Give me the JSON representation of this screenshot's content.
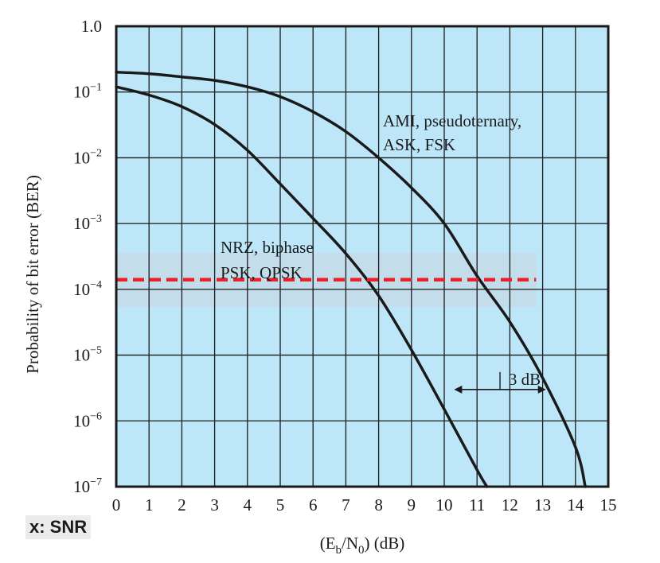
{
  "badge": {
    "text": "x: SNR"
  },
  "chart_data": {
    "type": "line",
    "xlabel": "(E_b/N_0) (dB)",
    "ylabel": "Probability of bit error (BER)",
    "xlim": [
      0,
      15
    ],
    "ylim": [
      1e-07,
      1.0
    ],
    "yscale": "log",
    "grid": true,
    "x_ticks": [
      0,
      1,
      2,
      3,
      4,
      5,
      6,
      7,
      8,
      9,
      10,
      11,
      12,
      13,
      14,
      15
    ],
    "y_ticks": [
      {
        "base": "1.0",
        "exp": ""
      },
      {
        "base": "10",
        "exp": "−1"
      },
      {
        "base": "10",
        "exp": "−2"
      },
      {
        "base": "10",
        "exp": "−3"
      },
      {
        "base": "10",
        "exp": "−4"
      },
      {
        "base": "10",
        "exp": "−5"
      },
      {
        "base": "10",
        "exp": "−6"
      },
      {
        "base": "10",
        "exp": "−7"
      }
    ],
    "series": [
      {
        "labels": [
          "NRZ, biphase",
          "PSK, QPSK"
        ],
        "x": [
          0,
          1,
          2,
          3,
          4,
          5,
          6,
          7,
          8,
          9,
          10,
          11,
          11.3
        ],
        "y": [
          0.12,
          0.09,
          0.06,
          0.032,
          0.013,
          0.004,
          0.0012,
          0.00035,
          8e-05,
          1.2e-05,
          1.5e-06,
          1.8e-07,
          1e-07
        ]
      },
      {
        "labels": [
          "AMI, pseudoternary,",
          "ASK, FSK"
        ],
        "x": [
          0,
          1,
          2,
          3,
          4,
          5,
          6,
          7,
          8,
          9,
          10,
          11,
          12,
          13,
          14,
          14.3
        ],
        "y": [
          0.2,
          0.19,
          0.17,
          0.15,
          0.12,
          0.085,
          0.05,
          0.025,
          0.01,
          0.0035,
          0.001,
          0.00016,
          3.2e-05,
          4.5e-06,
          4e-07,
          1e-07
        ]
      }
    ],
    "reference_line": {
      "y": 0.00014,
      "x_start": 0,
      "x_end": 12.8,
      "color": "#e8202a",
      "style": "dashed"
    },
    "annotation_arrow": {
      "label": "3 dB",
      "x_start": 10.3,
      "x_end": 13.1,
      "y": 3e-06
    },
    "colors": {
      "plot_background": "#bde6f8",
      "grid": "#1a1a1a",
      "curve": "#1a1a1a",
      "highlight_band": "#c9d6de"
    }
  }
}
